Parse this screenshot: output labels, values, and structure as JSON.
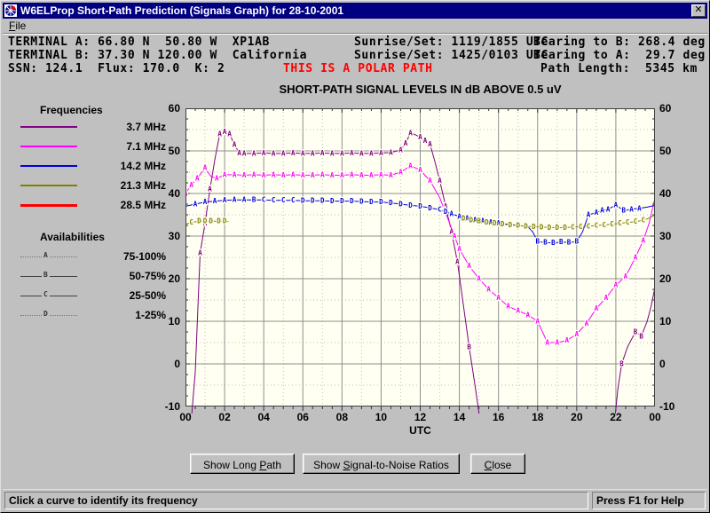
{
  "window": {
    "title": "W6ELProp Short-Path Prediction (Signals Graph) for 28-10-2001",
    "close_glyph": "x"
  },
  "menu": {
    "items": [
      {
        "label": "File",
        "mnemonic_index": 0
      }
    ]
  },
  "header": {
    "terminal_a": "TERMINAL A: 66.80 N  50.80 W  XP1AB",
    "terminal_b": "TERMINAL B: 37.30 N 120.00 W  California",
    "ssn_row": "SSN: 124.1  Flux: 170.0  K: 2",
    "sunrise_a": "Sunrise/Set: 1119/1855 UTC",
    "sunrise_b": "Sunrise/Set: 1425/0103 UTC",
    "bearing_b": "Bearing to B: 268.4 deg",
    "bearing_a": "Bearing to A:  29.7 deg",
    "polar_warning": "THIS IS A POLAR PATH",
    "path_length": "Path Length:  5345 km"
  },
  "legend": {
    "frequencies_title": "Frequencies",
    "availabilities_title": "Availabilities"
  },
  "chart_data": {
    "type": "line",
    "title": "SHORT-PATH SIGNAL LEVELS IN dB ABOVE 0.5 uV",
    "xlabel": "UTC",
    "xlim": [
      0,
      24
    ],
    "ylim": [
      -10,
      60
    ],
    "x_tick_hours": [
      0,
      2,
      4,
      6,
      8,
      10,
      12,
      14,
      16,
      18,
      20,
      22,
      24
    ],
    "x_tick_labels": [
      "00",
      "02",
      "04",
      "06",
      "08",
      "10",
      "12",
      "14",
      "16",
      "18",
      "20",
      "22",
      "00"
    ],
    "y_ticks": [
      60,
      50,
      40,
      30,
      20,
      10,
      0,
      -10
    ],
    "plot_bg": "#fffff2",
    "grid_major_color": "#8f8f8f",
    "grid_minor_color": "#bdbdbd",
    "availability_levels": [
      {
        "letter": "A",
        "range": "75-100%"
      },
      {
        "letter": "B",
        "range": "50-75%"
      },
      {
        "letter": "C",
        "range": "25-50%"
      },
      {
        "letter": "D",
        "range": "1-25%"
      }
    ],
    "series": [
      {
        "name": "3.7 MHz",
        "color": "#800080",
        "segments": [
          [
            [
              0.3,
              -13
            ],
            [
              0.5,
              -2
            ],
            [
              0.75,
              26,
              "A"
            ],
            [
              1.0,
              33,
              "A"
            ],
            [
              1.25,
              41,
              "A"
            ],
            [
              1.5,
              48
            ],
            [
              1.75,
              54,
              "A"
            ],
            [
              2.0,
              54.5,
              "A"
            ],
            [
              2.25,
              54,
              "A"
            ],
            [
              2.5,
              51.5,
              "A"
            ],
            [
              2.75,
              49.5,
              "A"
            ],
            [
              3.0,
              49.4,
              "A"
            ],
            [
              3.5,
              49.4,
              "A"
            ],
            [
              4.0,
              49.5,
              "A"
            ],
            [
              4.5,
              49.4,
              "A"
            ],
            [
              5.0,
              49.4,
              "A"
            ],
            [
              5.5,
              49.5,
              "A"
            ],
            [
              6.0,
              49.4,
              "A"
            ],
            [
              6.5,
              49.4,
              "A"
            ],
            [
              7.0,
              49.5,
              "A"
            ],
            [
              7.5,
              49.4,
              "A"
            ],
            [
              8.0,
              49.4,
              "A"
            ],
            [
              8.5,
              49.5,
              "A"
            ],
            [
              9.0,
              49.4,
              "A"
            ],
            [
              9.5,
              49.4,
              "A"
            ],
            [
              10.0,
              49.5,
              "A"
            ],
            [
              10.5,
              49.6,
              "A"
            ],
            [
              11.0,
              50.2,
              "A"
            ],
            [
              11.25,
              51.8,
              "A"
            ],
            [
              11.5,
              54.2,
              "A"
            ],
            [
              11.75,
              53.8
            ],
            [
              12.0,
              53.2,
              "A"
            ],
            [
              12.25,
              52.4,
              "A"
            ],
            [
              12.5,
              51.6,
              "A"
            ],
            [
              12.75,
              47.5
            ],
            [
              13.0,
              43,
              "A"
            ],
            [
              13.3,
              37,
              "A"
            ],
            [
              13.6,
              31,
              "A"
            ],
            [
              13.9,
              24,
              "A"
            ],
            [
              14.2,
              14
            ],
            [
              14.5,
              4,
              "B"
            ],
            [
              14.8,
              -5
            ],
            [
              15.05,
              -13
            ]
          ],
          [
            [
              21.95,
              -13
            ],
            [
              22.1,
              -6
            ],
            [
              22.3,
              0,
              "B"
            ],
            [
              22.6,
              4
            ],
            [
              23.0,
              7.5,
              "B"
            ],
            [
              23.3,
              6.5,
              "B"
            ],
            [
              23.6,
              10
            ],
            [
              23.8,
              13.5
            ],
            [
              24,
              18
            ]
          ]
        ]
      },
      {
        "name": "7.1 MHz",
        "color": "#ff00ff",
        "segments": [
          [
            [
              0,
              40,
              "A"
            ],
            [
              0.3,
              42,
              "A"
            ],
            [
              0.6,
              43.5,
              "A"
            ],
            [
              1.0,
              46,
              "A"
            ],
            [
              1.3,
              44
            ],
            [
              1.6,
              43.5,
              "A"
            ],
            [
              2.0,
              44.4,
              "A"
            ],
            [
              2.5,
              44.4,
              "A"
            ],
            [
              3.0,
              44.3,
              "A"
            ],
            [
              3.5,
              44.4,
              "A"
            ],
            [
              4.0,
              44.3,
              "A"
            ],
            [
              4.5,
              44.4,
              "A"
            ],
            [
              5.0,
              44.3,
              "A"
            ],
            [
              5.5,
              44.4,
              "A"
            ],
            [
              6.0,
              44.3,
              "A"
            ],
            [
              6.5,
              44.3,
              "A"
            ],
            [
              7.0,
              44.4,
              "A"
            ],
            [
              7.5,
              44.3,
              "A"
            ],
            [
              8.0,
              44.3,
              "A"
            ],
            [
              8.5,
              44.4,
              "A"
            ],
            [
              9.0,
              44.3,
              "A"
            ],
            [
              9.5,
              44.3,
              "A"
            ],
            [
              10.0,
              44.4,
              "A"
            ],
            [
              10.5,
              44.3,
              "A"
            ],
            [
              11.0,
              45,
              "A"
            ],
            [
              11.5,
              46.5,
              "A"
            ],
            [
              12.0,
              45.5,
              "A"
            ],
            [
              12.5,
              43,
              "A"
            ],
            [
              13.0,
              39
            ],
            [
              13.25,
              36,
              "A"
            ],
            [
              13.5,
              33
            ],
            [
              13.75,
              30,
              "A"
            ],
            [
              14.0,
              27,
              "A"
            ],
            [
              14.5,
              23,
              "A"
            ],
            [
              15.0,
              20,
              "A"
            ],
            [
              15.5,
              17.5,
              "A"
            ],
            [
              16.0,
              15.5,
              "A"
            ],
            [
              16.5,
              13.5,
              "A"
            ],
            [
              17.0,
              12.5,
              "A"
            ],
            [
              17.5,
              11.5,
              "A"
            ],
            [
              18.0,
              10,
              "A"
            ],
            [
              18.5,
              5,
              "A"
            ],
            [
              19.0,
              5,
              "A"
            ],
            [
              19.5,
              5.5,
              "A"
            ],
            [
              20.0,
              7,
              "A"
            ],
            [
              20.5,
              9.5,
              "A"
            ],
            [
              21.0,
              13,
              "A"
            ],
            [
              21.5,
              15.5,
              "A"
            ],
            [
              22.0,
              18.5,
              "A"
            ],
            [
              22.5,
              20.5,
              "A"
            ],
            [
              23.0,
              25,
              "A"
            ],
            [
              23.4,
              29,
              "A"
            ],
            [
              23.7,
              33
            ],
            [
              24,
              39
            ]
          ]
        ]
      },
      {
        "name": "14.2 MHz",
        "color": "#0000dd",
        "segments": [
          [
            [
              0,
              37
            ],
            [
              0.5,
              37.5,
              "A"
            ],
            [
              1.0,
              38,
              "A"
            ],
            [
              1.5,
              38.2,
              "A"
            ],
            [
              2.0,
              38.4,
              "A"
            ],
            [
              2.5,
              38.5,
              "A"
            ],
            [
              3.0,
              38.5,
              "A"
            ],
            [
              3.5,
              38.5,
              "B"
            ],
            [
              4.0,
              38.5,
              "C"
            ],
            [
              4.5,
              38.4,
              "C"
            ],
            [
              5.0,
              38.4,
              "C"
            ],
            [
              5.5,
              38.4,
              "C"
            ],
            [
              6.0,
              38.3,
              "D"
            ],
            [
              6.5,
              38.3,
              "D"
            ],
            [
              7.0,
              38.3,
              "D"
            ],
            [
              7.5,
              38.2,
              "D"
            ],
            [
              8.0,
              38.2,
              "D"
            ],
            [
              8.5,
              38.2,
              "D"
            ],
            [
              9.0,
              38.1,
              "D"
            ],
            [
              9.5,
              38,
              "D"
            ],
            [
              10.0,
              38,
              "D"
            ],
            [
              10.5,
              37.8,
              "D"
            ],
            [
              11.0,
              37.5,
              "D"
            ],
            [
              11.5,
              37.2,
              "D"
            ],
            [
              12.0,
              37,
              "D"
            ],
            [
              12.5,
              36.6,
              "D"
            ],
            [
              13.0,
              36.2,
              "C"
            ],
            [
              13.3,
              35.7,
              "D"
            ],
            [
              13.6,
              35.2,
              "A"
            ],
            [
              14.0,
              34.6,
              "A"
            ],
            [
              14.4,
              34.2,
              "A"
            ],
            [
              14.8,
              33.8,
              "A"
            ],
            [
              15.2,
              33.5,
              "A"
            ],
            [
              15.6,
              33.2,
              "A"
            ],
            [
              16.0,
              33,
              "A"
            ],
            [
              16.5,
              32.8
            ],
            [
              17.0,
              32.5,
              "C"
            ],
            [
              17.5,
              32.2
            ],
            [
              17.75,
              31
            ],
            [
              18.0,
              28.7,
              "B"
            ],
            [
              18.4,
              28.5,
              "B"
            ],
            [
              18.8,
              28.4,
              "B"
            ],
            [
              19.2,
              28.6,
              "B"
            ],
            [
              19.6,
              28.5,
              "B"
            ],
            [
              20.0,
              28.7,
              "B"
            ],
            [
              20.3,
              31
            ],
            [
              20.6,
              35,
              "A"
            ],
            [
              21.0,
              35.5,
              "A"
            ],
            [
              21.3,
              36,
              "A"
            ],
            [
              21.6,
              36.3,
              "A"
            ],
            [
              22.0,
              37.3,
              "A"
            ],
            [
              22.4,
              36,
              "B"
            ],
            [
              22.8,
              36.3,
              "A"
            ],
            [
              23.2,
              36.5,
              "A"
            ],
            [
              23.6,
              36.8
            ],
            [
              24,
              37.2
            ]
          ]
        ]
      },
      {
        "name": "21.3 MHz",
        "color": "#808000",
        "segments": [
          [
            [
              0,
              32.8
            ],
            [
              0.3,
              33.2,
              "C"
            ],
            [
              0.7,
              33.5,
              "D"
            ],
            [
              1.0,
              33.5,
              "D"
            ],
            [
              1.3,
              33.5,
              "D"
            ],
            [
              1.7,
              33.5,
              "D"
            ],
            [
              2.0,
              33.5,
              "D"
            ],
            [
              2.2,
              33.4
            ]
          ],
          [
            [
              14.2,
              34.2,
              "D"
            ],
            [
              14.6,
              33.8,
              "D"
            ],
            [
              15.0,
              33.5,
              "B"
            ],
            [
              15.4,
              33.2,
              "D"
            ],
            [
              15.8,
              33,
              "D"
            ],
            [
              16.2,
              32.8,
              "D"
            ],
            [
              16.6,
              32.6,
              "D"
            ],
            [
              17.0,
              32.5,
              "D"
            ],
            [
              17.4,
              32.3,
              "D"
            ],
            [
              17.8,
              32.2,
              "D"
            ],
            [
              18.2,
              32.1,
              "D"
            ],
            [
              18.6,
              32,
              "D"
            ],
            [
              19.0,
              32,
              "D"
            ],
            [
              19.4,
              32,
              "D"
            ],
            [
              19.8,
              32.1,
              "C"
            ],
            [
              20.2,
              32.2,
              "C"
            ],
            [
              20.6,
              32.3,
              "C"
            ],
            [
              21.0,
              32.5,
              "C"
            ],
            [
              21.4,
              32.6,
              "C"
            ],
            [
              21.8,
              32.8,
              "C"
            ],
            [
              22.2,
              33,
              "C"
            ],
            [
              22.6,
              33.2,
              "C"
            ],
            [
              23.0,
              33.4,
              "C"
            ],
            [
              23.4,
              33.7,
              "C"
            ],
            [
              23.7,
              34.2
            ],
            [
              24,
              35
            ]
          ]
        ]
      },
      {
        "name": "28.5 MHz",
        "color": "#ff0000",
        "segments": []
      }
    ]
  },
  "buttons": [
    {
      "label": "Show Long Path",
      "mnemonic_index": 10
    },
    {
      "label": "Show Signal-to-Noise Ratios",
      "mnemonic_index": 5
    },
    {
      "label": "Close",
      "mnemonic_index": 0
    }
  ],
  "statusbar": {
    "left": "Click a curve to identify its frequency",
    "right": "Press F1 for Help"
  }
}
